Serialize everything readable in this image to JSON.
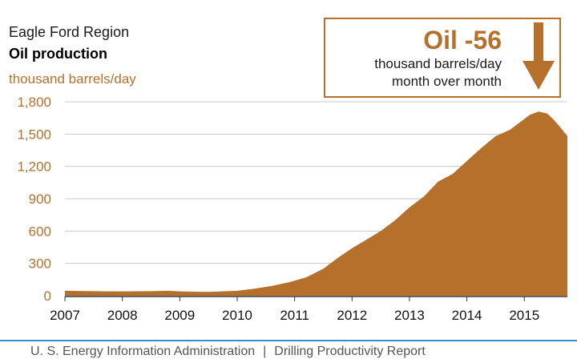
{
  "header": {
    "region": "Eagle Ford Region",
    "title": "Oil production",
    "units": "thousand barrels/day"
  },
  "callout": {
    "headline": "Oil -56",
    "line1": "thousand barrels/day",
    "line2": "month over month"
  },
  "footer": {
    "source": "U. S. Energy Information Administration",
    "separator": "|",
    "report": "Drilling Productivity Report"
  },
  "colors": {
    "accent": "#b5702b",
    "footer_rule": "#3a8fc4",
    "grid": "#c8c8c8"
  },
  "chart_data": {
    "type": "area",
    "title": "Oil production",
    "ylabel": "thousand barrels/day",
    "ylim": [
      0,
      1800
    ],
    "yticks": [
      0,
      300,
      600,
      900,
      1200,
      1500,
      1800
    ],
    "ytick_labels": [
      "0",
      "300",
      "600",
      "900",
      "1,200",
      "1,500",
      "1,800"
    ],
    "xlim": [
      2007,
      2015.75
    ],
    "xticks": [
      2007,
      2008,
      2009,
      2010,
      2011,
      2012,
      2013,
      2014,
      2015
    ],
    "xtick_labels": [
      "2007",
      "2008",
      "2009",
      "2010",
      "2011",
      "2012",
      "2013",
      "2014",
      "2015"
    ],
    "grid": true,
    "series": [
      {
        "values_x": [
          2007.0,
          2007.5,
          2008.0,
          2008.5,
          2008.8,
          2009.0,
          2009.5,
          2010.0,
          2010.3,
          2010.6,
          2010.9,
          2011.0,
          2011.2,
          2011.5,
          2011.75,
          2012.0,
          2012.25,
          2012.5,
          2012.75,
          2013.0,
          2013.25,
          2013.5,
          2013.75,
          2014.0,
          2014.25,
          2014.5,
          2014.75,
          2015.0,
          2015.1,
          2015.25,
          2015.4,
          2015.5,
          2015.6,
          2015.75
        ],
        "values_y": [
          45,
          42,
          40,
          42,
          45,
          40,
          35,
          45,
          65,
          90,
          125,
          140,
          170,
          250,
          350,
          440,
          520,
          600,
          700,
          820,
          920,
          1060,
          1130,
          1250,
          1370,
          1480,
          1540,
          1640,
          1680,
          1710,
          1690,
          1640,
          1580,
          1480
        ]
      }
    ]
  }
}
